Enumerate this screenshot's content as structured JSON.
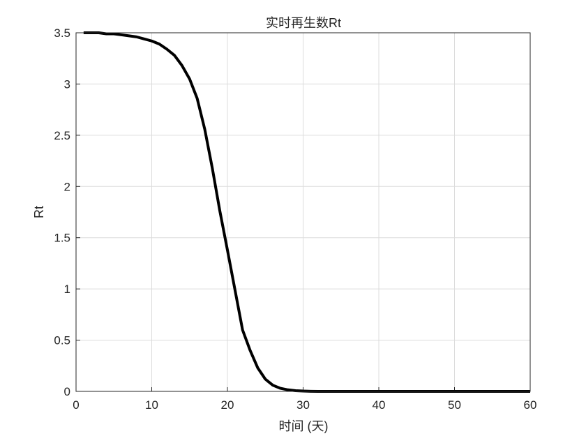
{
  "chart_data": {
    "type": "line",
    "title": "实时再生数Rt",
    "xlabel": "时间 (天)",
    "ylabel": "Rt",
    "xlim": [
      0,
      60
    ],
    "ylim": [
      0,
      3.5
    ],
    "grid": true,
    "xticks": [
      "0",
      "10",
      "20",
      "30",
      "40",
      "50",
      "60"
    ],
    "yticks": [
      "0",
      "0.5",
      "1",
      "1.5",
      "2",
      "2.5",
      "3",
      "3.5"
    ],
    "line_color": "#000000",
    "series": [
      {
        "x": [
          1,
          2,
          3,
          4,
          5,
          6,
          7,
          8,
          9,
          10,
          11,
          12,
          13,
          14,
          15,
          16,
          17,
          18,
          19,
          20,
          21,
          22,
          23,
          24,
          25,
          26,
          27,
          28,
          29,
          30,
          31,
          32,
          33,
          34,
          35,
          36,
          37,
          38,
          39,
          40,
          41,
          42,
          43,
          44,
          45,
          46,
          47,
          48,
          49,
          50,
          51,
          52,
          53,
          54,
          55,
          56,
          57,
          58,
          59,
          60
        ],
        "values": [
          3.5,
          3.5,
          3.5,
          3.49,
          3.49,
          3.48,
          3.47,
          3.46,
          3.44,
          3.42,
          3.39,
          3.34,
          3.28,
          3.18,
          3.05,
          2.86,
          2.56,
          2.18,
          1.76,
          1.38,
          0.99,
          0.6,
          0.4,
          0.23,
          0.12,
          0.06,
          0.03,
          0.015,
          0.007,
          0.003,
          0.001,
          0,
          0,
          0,
          0,
          0,
          0,
          0,
          0,
          0,
          0,
          0,
          0,
          0,
          0,
          0,
          0,
          0,
          0,
          0,
          0,
          0,
          0,
          0,
          0,
          0,
          0,
          0,
          0,
          0
        ]
      }
    ]
  }
}
